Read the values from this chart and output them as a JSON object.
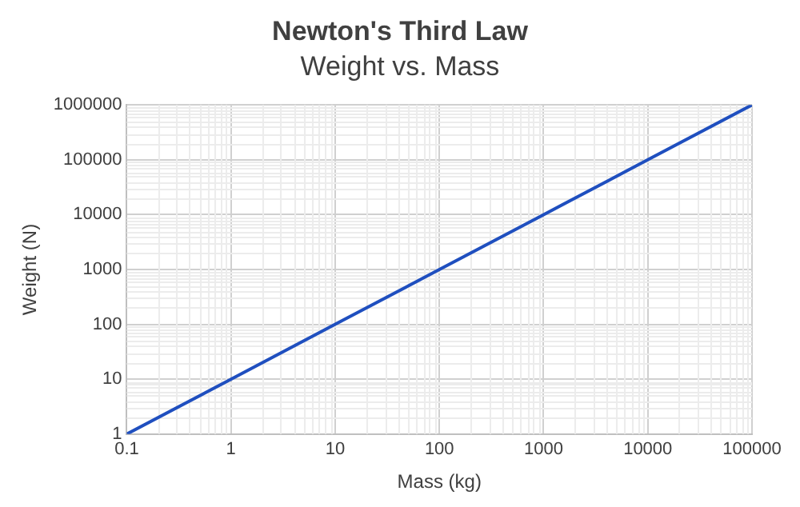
{
  "chart_data": {
    "type": "line",
    "title": "Newton's Third Law",
    "subtitle": "Weight vs. Mass",
    "xlabel": "Mass (kg)",
    "ylabel": "Weight (N)",
    "x": [
      0.1,
      1,
      10,
      100,
      1000,
      10000,
      100000
    ],
    "series": [
      {
        "color": "#1f4fbf",
        "values": [
          1,
          10,
          100,
          1000,
          10000,
          100000,
          1000000
        ]
      }
    ],
    "log": "xy",
    "xlim": [
      0.1,
      100000
    ],
    "ylim": [
      1,
      1000000
    ],
    "xticks": [
      0.1,
      1,
      10,
      100,
      1000,
      10000,
      100000
    ],
    "yticks": [
      1,
      10,
      100,
      1000,
      10000,
      100000,
      1000000
    ],
    "grid": true,
    "legend": false,
    "marker": "none",
    "line_style": "solid"
  }
}
